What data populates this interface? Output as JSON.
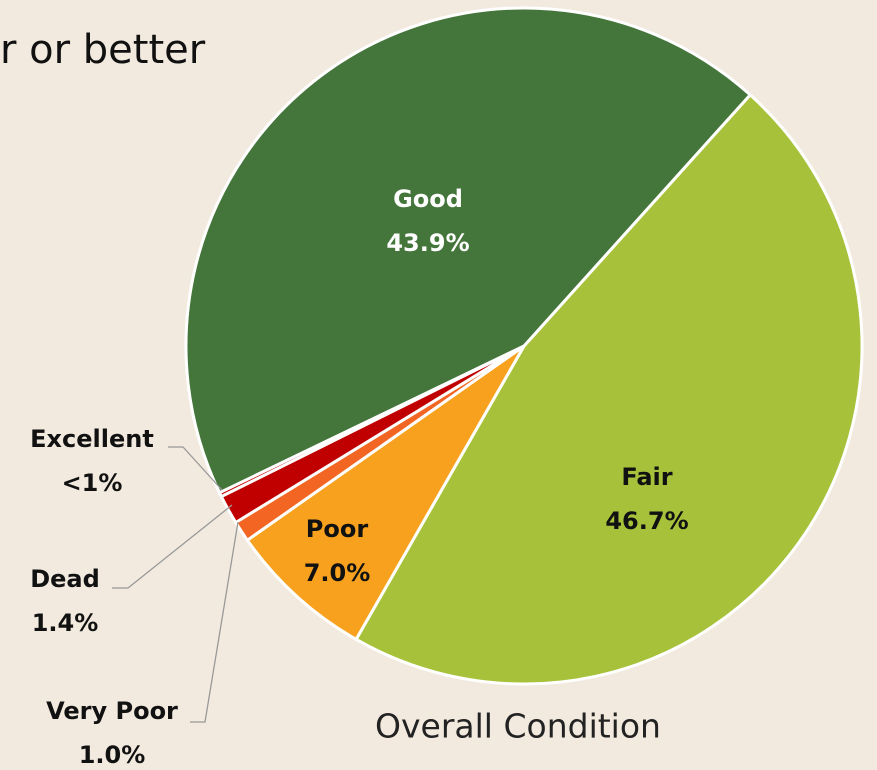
{
  "heading": "r or better",
  "chart_data": {
    "type": "pie",
    "title": "Overall Condition",
    "categories": [
      "Fair",
      "Poor",
      "Very Poor",
      "Dead",
      "Excellent",
      "Good"
    ],
    "values": [
      46.7,
      7.0,
      1.0,
      1.4,
      0.2,
      43.9
    ],
    "value_labels": [
      "46.7%",
      "7.0%",
      "1.0%",
      "1.4%",
      "<1%",
      "43.9%"
    ],
    "colors": [
      "#a7c23a",
      "#f7a11e",
      "#f26522",
      "#c00000",
      "#c00000",
      "#44753a"
    ]
  }
}
